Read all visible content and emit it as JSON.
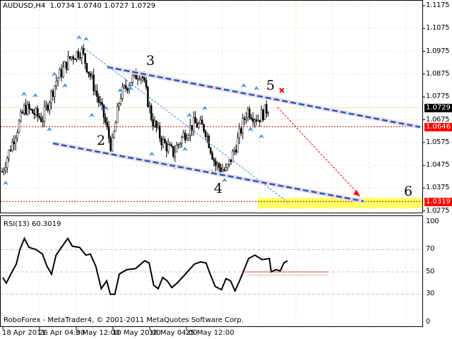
{
  "header": {
    "symbol": "AUDUSD,H4",
    "ohlc": "1.0734 1.0740 1.0727 1.0729"
  },
  "price_axis": {
    "ticks": [
      "1.1175",
      "1.1075",
      "1.0975",
      "1.0875",
      "1.0775",
      "1.0675",
      "1.0575",
      "1.0475",
      "1.0375",
      "1.0275"
    ],
    "current": {
      "value": "1.0729",
      "color": "#000000"
    },
    "markers": [
      {
        "value": "1.0646",
        "color": "#ff0000"
      },
      {
        "value": "1.0319",
        "color": "#ff0000"
      }
    ]
  },
  "wave_labels": [
    "2",
    "3",
    "4",
    "5",
    "6"
  ],
  "rsi": {
    "title": "RSI(13) 60.3019",
    "ticks": [
      "100",
      "70",
      "50",
      "30",
      "0"
    ]
  },
  "footer": {
    "copyright": "RoboForex - MetaTrader4, © 2001-2011 MetaQuotes Software Corp."
  },
  "time_axis": [
    "18 Apr 2011",
    "26 Apr 04:00",
    "3 May 12:00",
    "10 May 20:00",
    "18 May 04:00",
    "25 May 12:00"
  ],
  "colors": {
    "channel": "#1560bd",
    "target_zone": "#ffff66",
    "forecast_arrow": "#ff0000",
    "fractal": "#3a8ee6"
  }
}
